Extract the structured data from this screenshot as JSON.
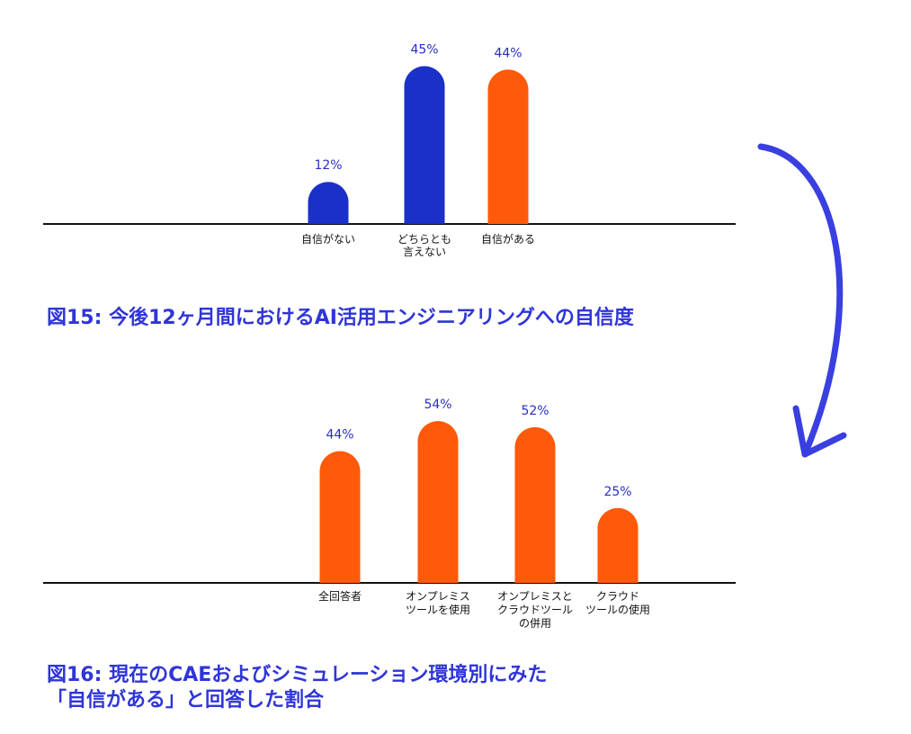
{
  "colors": {
    "blue_bar": "#1a31c9",
    "orange_bar": "#ff5a0a",
    "value_label": "#2a2fbf",
    "caption": "#2f35d8",
    "arrow": "#3a3fe0",
    "axis": "#111111"
  },
  "figures": {
    "fig15_caption": "図15: 今後12ヶ月間におけるAI活用エンジニアリングへの自信度",
    "fig16_caption_line1": "図16: 現在のCAEおよびシミュレーション環境別にみた",
    "fig16_caption_line2": "「自信がある」と回答した割合"
  },
  "chart_data": [
    {
      "type": "bar",
      "title": "",
      "xlabel": "",
      "ylabel": "",
      "ylim": [
        0,
        50
      ],
      "grid": false,
      "categories": [
        [
          "自信がない"
        ],
        [
          "どちらとも",
          "言えない"
        ],
        [
          "自信がある"
        ]
      ],
      "values": [
        12,
        45,
        44
      ],
      "value_labels": [
        "12%",
        "45%",
        "44%"
      ],
      "bar_colors": [
        "#1a31c9",
        "#1a31c9",
        "#ff5a0a"
      ]
    },
    {
      "type": "bar",
      "title": "",
      "xlabel": "",
      "ylabel": "",
      "ylim": [
        0,
        60
      ],
      "grid": false,
      "categories": [
        [
          "全回答者"
        ],
        [
          "オンプレミス",
          "ツールを使用"
        ],
        [
          "オンプレミスと",
          "クラウドツール",
          "の併用"
        ],
        [
          "クラウド",
          "ツールの使用"
        ]
      ],
      "values": [
        44,
        54,
        52,
        25
      ],
      "value_labels": [
        "44%",
        "54%",
        "52%",
        "25%"
      ],
      "bar_colors": [
        "#ff5a0a",
        "#ff5a0a",
        "#ff5a0a",
        "#ff5a0a"
      ]
    }
  ]
}
